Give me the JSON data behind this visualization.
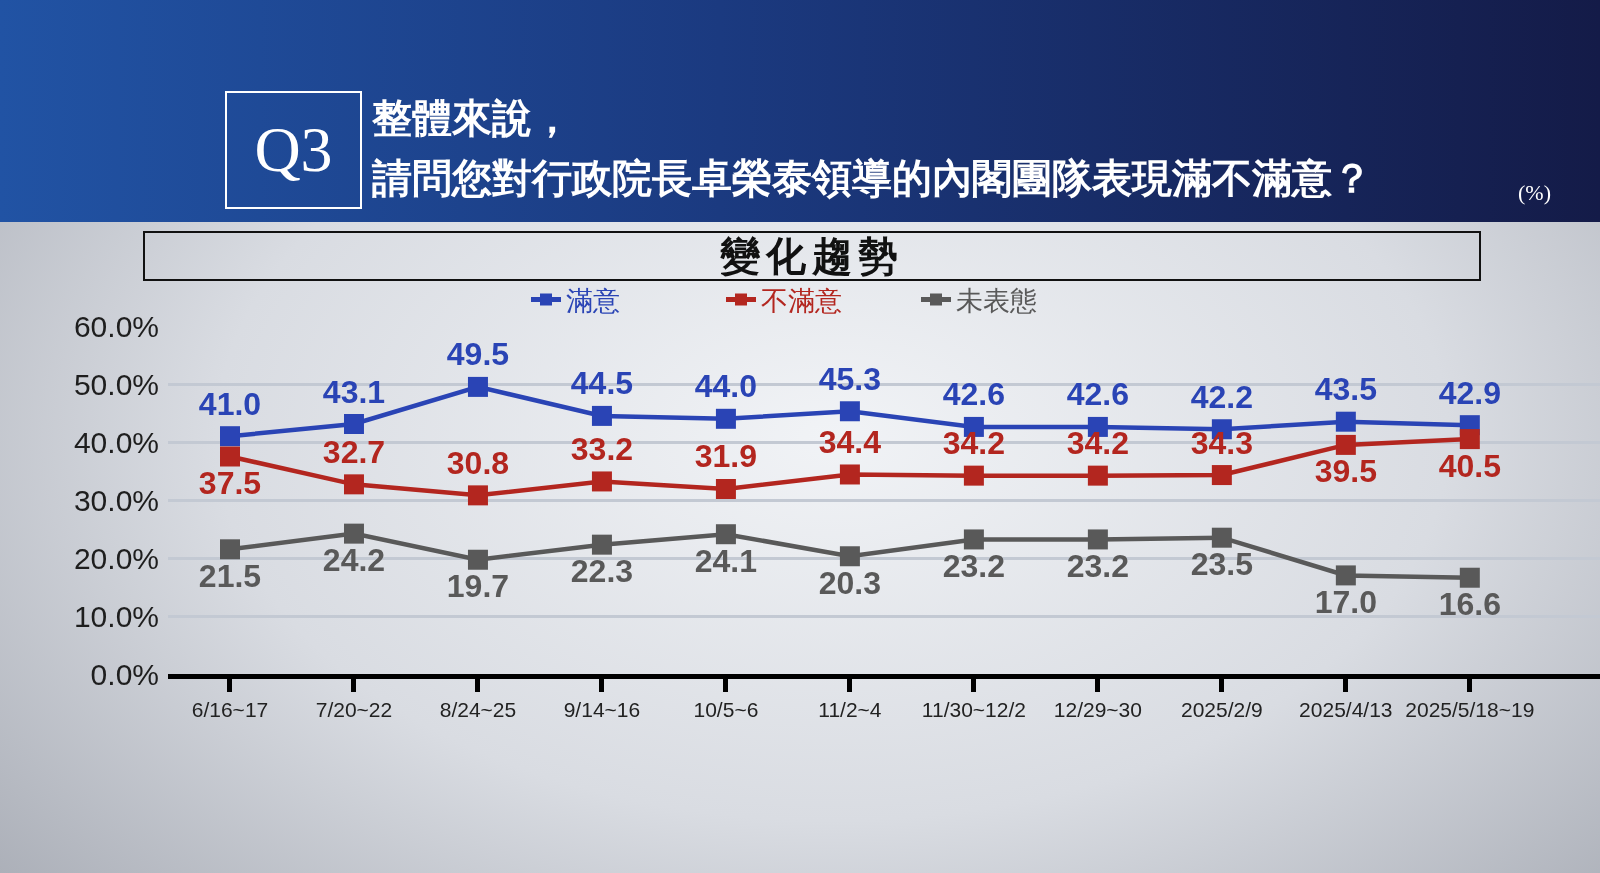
{
  "chart_data": {
    "type": "line",
    "title": "整體來說，請問您對行政院長卓榮泰領導的內閣團隊表現滿不滿意？",
    "subtitle": "變化趨勢",
    "annotations": [
      "Q3",
      "(%)"
    ],
    "categories": [
      "6/16~17",
      "7/20~22",
      "8/24~25",
      "9/14~16",
      "10/5~6",
      "11/2~4",
      "11/30~12/2",
      "12/29~30",
      "2025/2/9",
      "2025/4/13",
      "2025/5/18~19"
    ],
    "series": [
      {
        "name": "滿意",
        "color": "#2a44b5",
        "values": [
          41.0,
          43.1,
          49.5,
          44.5,
          44.0,
          45.3,
          42.6,
          42.6,
          42.2,
          43.5,
          42.9
        ],
        "value_labels": [
          "41.0",
          "43.1",
          "49.5",
          "44.5",
          "44.0",
          "45.3",
          "42.6",
          "42.6",
          "42.2",
          "43.5",
          "42.9"
        ]
      },
      {
        "name": "不滿意",
        "color": "#b3261f",
        "values": [
          37.5,
          32.7,
          30.8,
          33.2,
          31.9,
          34.4,
          34.2,
          34.2,
          34.3,
          39.5,
          40.5
        ],
        "value_labels": [
          "37.5",
          "32.7",
          "30.8",
          "33.2",
          "31.9",
          "34.4",
          "34.2",
          "34.2",
          "34.3",
          "39.5",
          "40.5"
        ]
      },
      {
        "name": "未表態",
        "color": "#595959",
        "values": [
          21.5,
          24.2,
          19.7,
          22.3,
          24.1,
          20.3,
          23.2,
          23.2,
          23.5,
          17.0,
          16.6
        ],
        "value_labels": [
          "21.5",
          "24.2",
          "19.7",
          "22.3",
          "24.1",
          "20.3",
          "23.2",
          "23.2",
          "23.5",
          "17.0",
          "16.6"
        ]
      }
    ],
    "ylim": [
      0,
      60
    ],
    "yticks": [
      {
        "value": 0,
        "label": "0.0%"
      },
      {
        "value": 10,
        "label": "10.0%"
      },
      {
        "value": 20,
        "label": "20.0%"
      },
      {
        "value": 30,
        "label": "30.0%"
      },
      {
        "value": 40,
        "label": "40.0%"
      },
      {
        "value": 50,
        "label": "50.0%"
      },
      {
        "value": 60,
        "label": "60.0%"
      }
    ],
    "grid": "y",
    "legend": "top",
    "marker": "square",
    "line_style": "solid"
  }
}
